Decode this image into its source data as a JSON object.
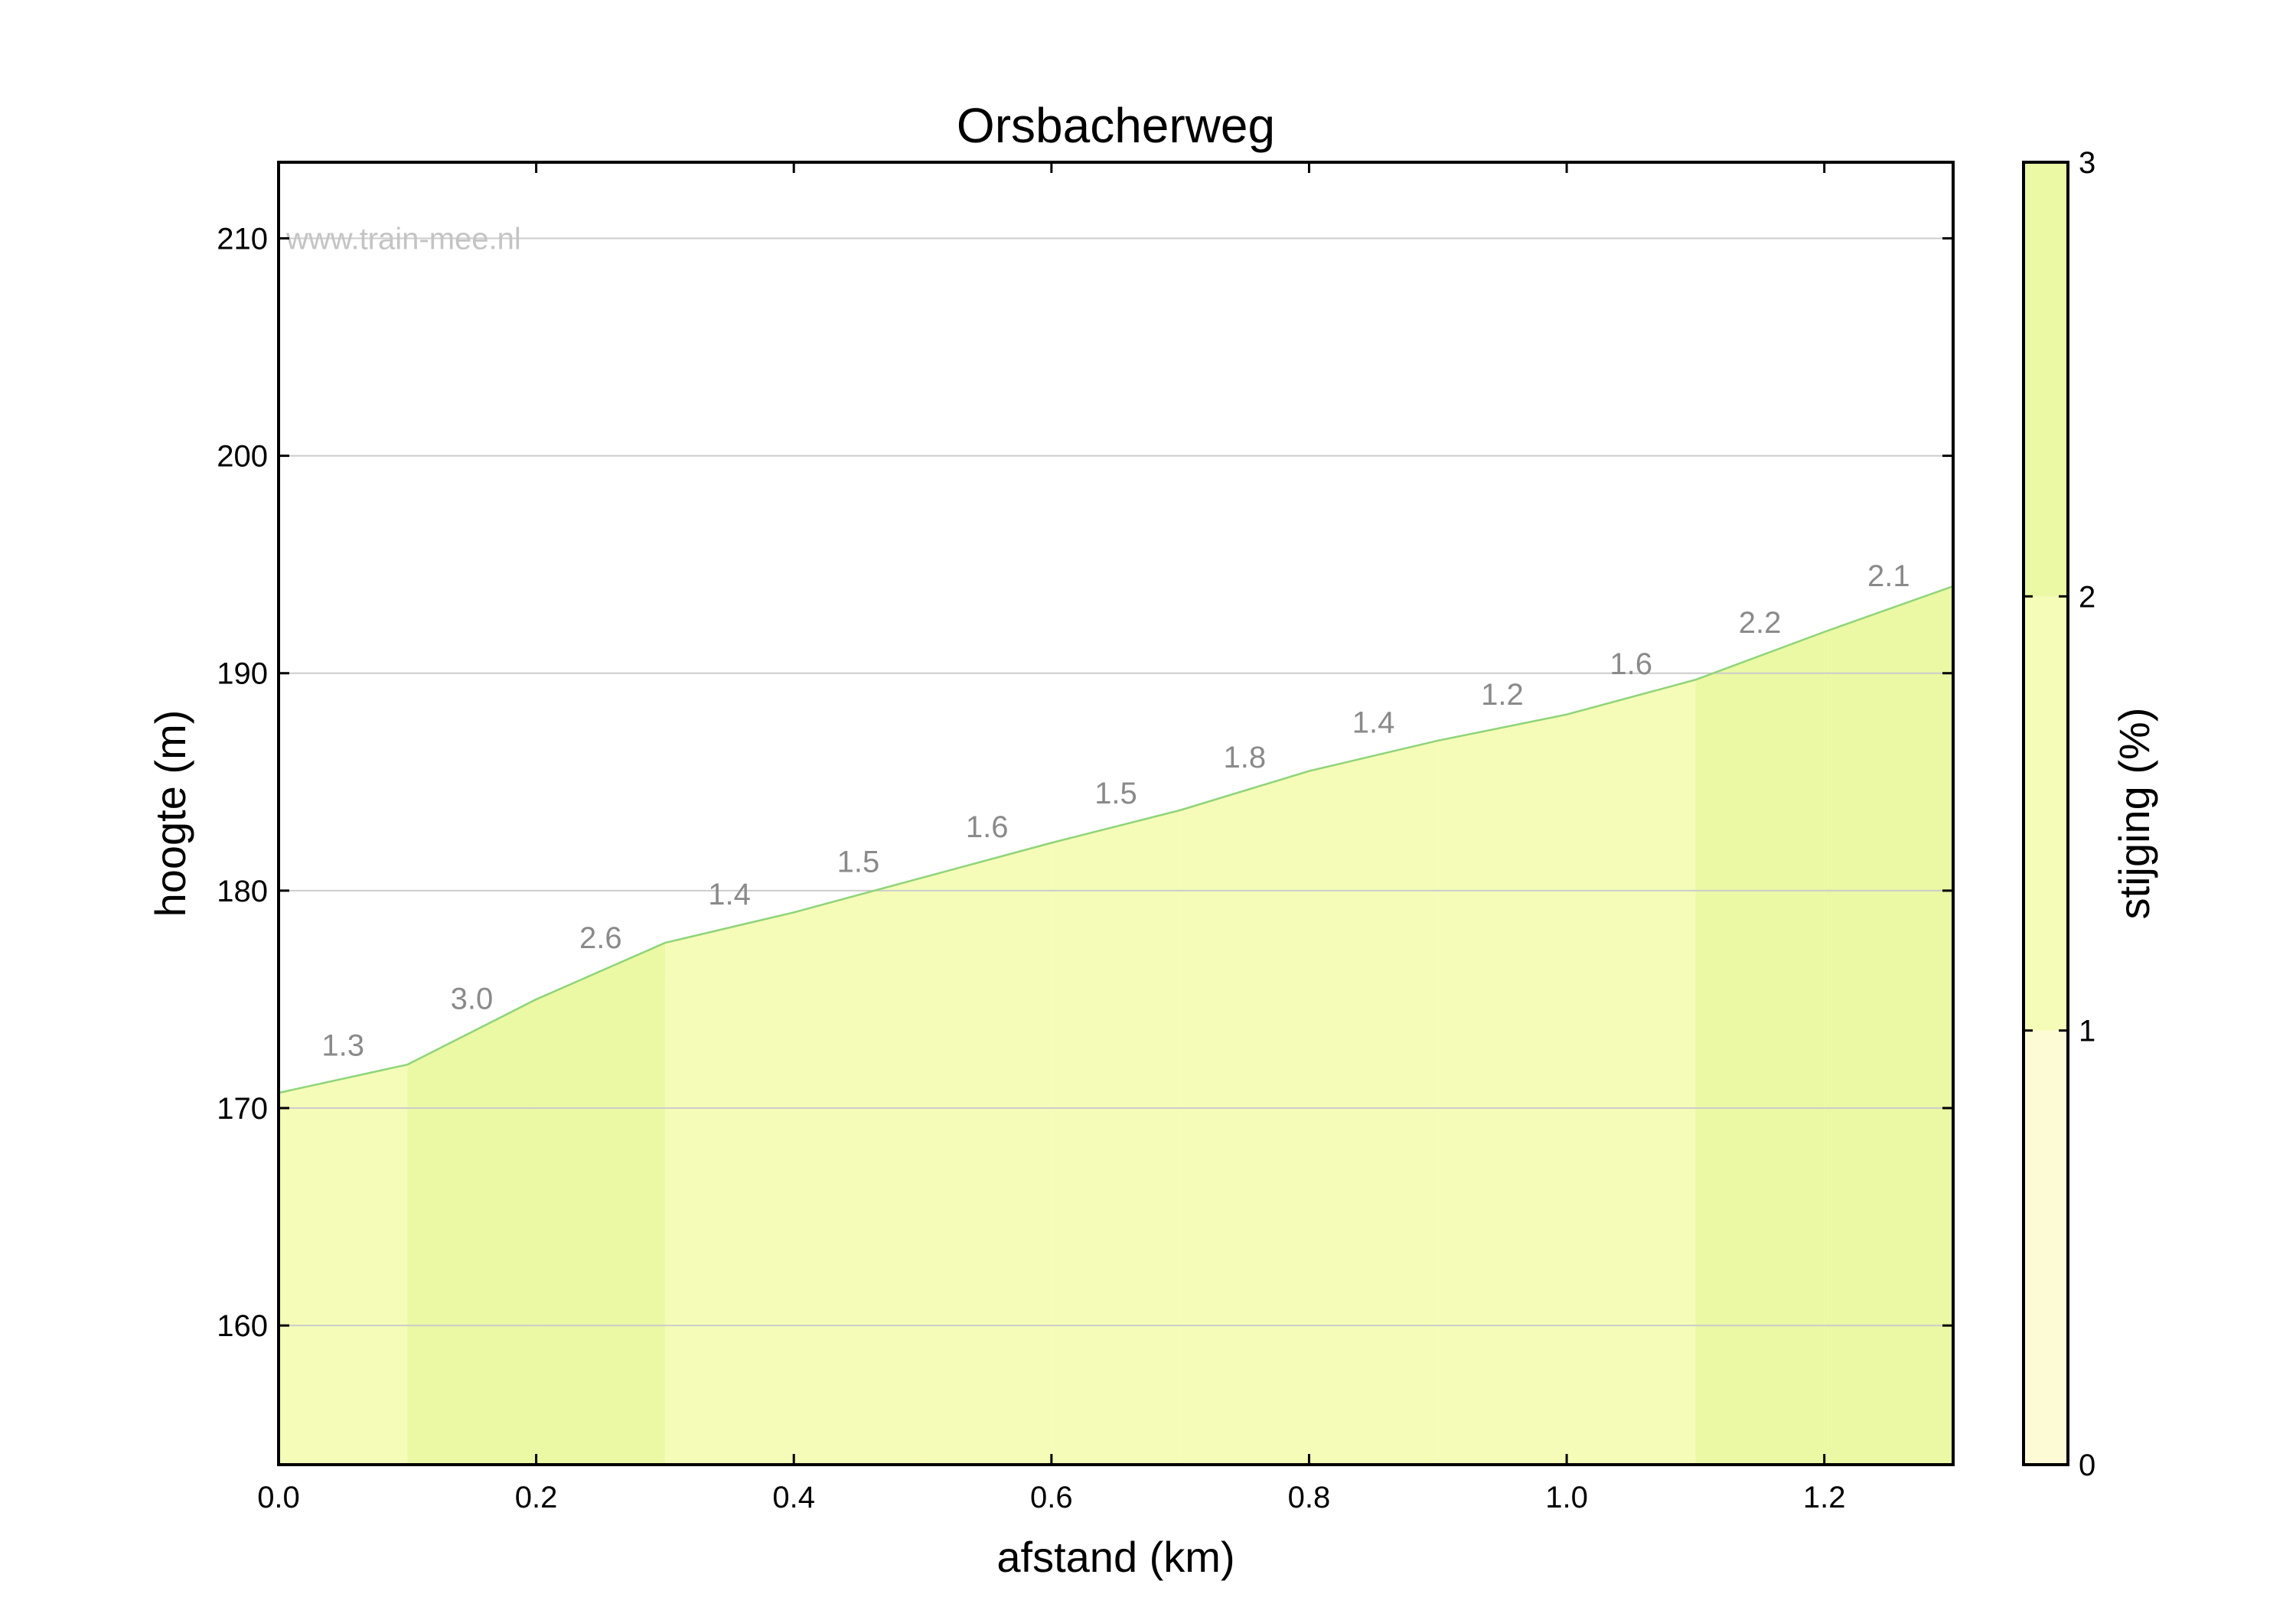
{
  "chart_data": {
    "type": "area",
    "title": "Orsbacherweg",
    "xlabel": "afstand (km)",
    "ylabel": "hoogte (m)",
    "xlim": [
      0.0,
      1.3
    ],
    "ylim": [
      153.6,
      213.5
    ],
    "grid": true,
    "x_ticks": [
      "0.0",
      "0.2",
      "0.4",
      "0.6",
      "0.8",
      "1.0",
      "1.2"
    ],
    "x_tick_values": [
      0.0,
      0.2,
      0.4,
      0.6,
      0.8,
      1.0,
      1.2
    ],
    "y_ticks": [
      "160",
      "170",
      "180",
      "190",
      "200",
      "210"
    ],
    "y_tick_values": [
      160,
      170,
      180,
      190,
      200,
      210
    ],
    "profile": {
      "x": [
        0.0,
        0.1,
        0.2,
        0.3,
        0.4,
        0.5,
        0.6,
        0.7,
        0.8,
        0.9,
        1.0,
        1.1,
        1.2,
        1.3
      ],
      "y": [
        170.7,
        172.0,
        175.0,
        177.6,
        179.0,
        180.6,
        182.2,
        183.7,
        185.5,
        186.9,
        188.1,
        189.7,
        191.9,
        194.0
      ]
    },
    "segments": [
      {
        "from": 0.0,
        "to": 0.1,
        "grade": 1.3,
        "label": "1.3"
      },
      {
        "from": 0.1,
        "to": 0.2,
        "grade": 3.0,
        "label": "3.0"
      },
      {
        "from": 0.2,
        "to": 0.3,
        "grade": 2.6,
        "label": "2.6"
      },
      {
        "from": 0.3,
        "to": 0.4,
        "grade": 1.4,
        "label": "1.4"
      },
      {
        "from": 0.4,
        "to": 0.5,
        "grade": 1.5,
        "label": "1.5"
      },
      {
        "from": 0.5,
        "to": 0.6,
        "grade": 1.6,
        "label": "1.6"
      },
      {
        "from": 0.6,
        "to": 0.7,
        "grade": 1.5,
        "label": "1.5"
      },
      {
        "from": 0.7,
        "to": 0.8,
        "grade": 1.8,
        "label": "1.8"
      },
      {
        "from": 0.8,
        "to": 0.9,
        "grade": 1.4,
        "label": "1.4"
      },
      {
        "from": 0.9,
        "to": 1.0,
        "grade": 1.2,
        "label": "1.2"
      },
      {
        "from": 1.0,
        "to": 1.1,
        "grade": 1.6,
        "label": "1.6"
      },
      {
        "from": 1.1,
        "to": 1.2,
        "grade": 2.2,
        "label": "2.2"
      },
      {
        "from": 1.2,
        "to": 1.3,
        "grade": 2.1,
        "label": "2.1"
      }
    ],
    "colorbar": {
      "label": "stijging (%)",
      "range": [
        0,
        3
      ],
      "ticks": [
        "0",
        "1",
        "2",
        "3"
      ],
      "tick_values": [
        0,
        1,
        2,
        3
      ],
      "bands": [
        {
          "from": 0,
          "to": 1,
          "color": "#fdfbd6"
        },
        {
          "from": 1,
          "to": 2,
          "color": "#f5fcb7"
        },
        {
          "from": 2,
          "to": 3,
          "color": "#ebf8a4"
        }
      ]
    },
    "watermark": "www.train-mee.nl",
    "line_color": "#8fd47a",
    "grid_color": "#cccccc"
  }
}
